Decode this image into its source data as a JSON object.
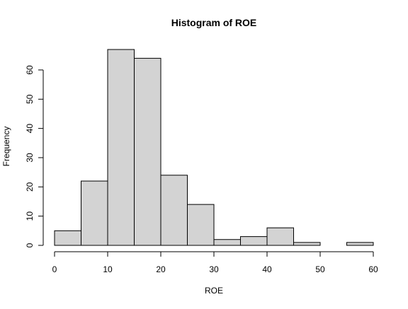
{
  "chart_data": {
    "type": "bar",
    "title": "Histogram of ROE",
    "xlabel": "ROE",
    "ylabel": "Frequency",
    "bins": [
      [
        0,
        5
      ],
      [
        5,
        10
      ],
      [
        10,
        15
      ],
      [
        15,
        20
      ],
      [
        20,
        25
      ],
      [
        25,
        30
      ],
      [
        30,
        35
      ],
      [
        35,
        40
      ],
      [
        40,
        45
      ],
      [
        45,
        50
      ],
      [
        50,
        55
      ],
      [
        55,
        60
      ]
    ],
    "values": [
      5,
      22,
      67,
      64,
      24,
      14,
      2,
      3,
      6,
      1,
      0,
      1
    ],
    "xlim": [
      0,
      60
    ],
    "ylim": [
      0,
      67
    ],
    "xticks": [
      0,
      10,
      20,
      30,
      40,
      50,
      60
    ],
    "yticks": [
      0,
      10,
      20,
      30,
      40,
      50,
      60
    ],
    "grid": false,
    "colors": {
      "bar_fill": "#d3d3d3",
      "bar_stroke": "#000000",
      "axis": "#000000",
      "background": "#ffffff"
    }
  }
}
